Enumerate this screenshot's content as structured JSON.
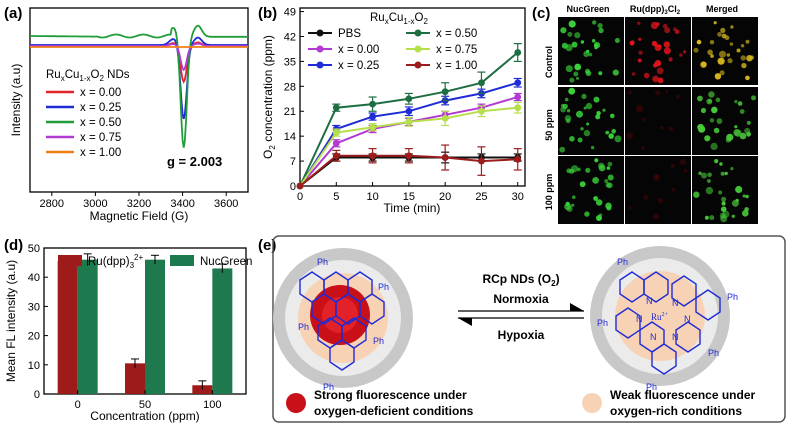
{
  "panels": {
    "a": {
      "label": "(a)"
    },
    "b": {
      "label": "(b)"
    },
    "c": {
      "label": "(c)"
    },
    "d": {
      "label": "(d)"
    },
    "e": {
      "label": "(e)"
    }
  },
  "colors": {
    "red": "#e3242b",
    "blue": "#1f2bd6",
    "green": "#219c3b",
    "purple": "#b23ad2",
    "orange": "#f07f1a",
    "black": "#111111",
    "dkgreen": "#1d6e43",
    "lime": "#b6e04a",
    "maroon": "#9b1d1d",
    "barred": "#9e1b1b",
    "bargreen": "#1e7a4e"
  },
  "chart_data": [
    {
      "id": "a",
      "type": "line",
      "title": "",
      "xlabel": "Magnetic Field (G)",
      "ylabel": "Intensity (a.u)",
      "xlim": [
        2700,
        3700
      ],
      "xticks": [
        2800,
        3000,
        3200,
        3400,
        3600
      ],
      "legend_title_main": "Ru",
      "legend_title_sub1": "x",
      "legend_title_mid": "Cu",
      "legend_title_sub2": "1-x",
      "legend_title_mid2": "O",
      "legend_title_sub3": "2",
      "legend_title_end": " NDs",
      "annotation": "g = 2.003",
      "series": [
        {
          "name": "x = 0.00",
          "color": "#e3242b",
          "depth": 0.3
        },
        {
          "name": "x = 0.25",
          "color": "#1f2bd6",
          "depth": 0.62
        },
        {
          "name": "x = 0.50",
          "color": "#219c3b",
          "depth": 0.93
        },
        {
          "name": "x = 0.75",
          "color": "#b23ad2",
          "depth": 0.2
        },
        {
          "name": "x = 1.00",
          "color": "#f07f1a",
          "depth": 0.0
        }
      ]
    },
    {
      "id": "b",
      "type": "line",
      "title_main": "Ru",
      "title_sub1": "x",
      "title_mid": "Cu",
      "title_sub2": "1-x",
      "title_mid2": "O",
      "title_sub3": "2",
      "xlabel": "Time (min)",
      "ylabel_main": "O",
      "ylabel_sub": "2",
      "ylabel_rest": " concentration (ppm)",
      "xlim": [
        0,
        31
      ],
      "ylim": [
        0,
        50
      ],
      "xticks": [
        0,
        5,
        10,
        15,
        20,
        25,
        30
      ],
      "yticks": [
        0,
        7,
        14,
        21,
        28,
        35,
        42,
        49
      ],
      "x": [
        0,
        5,
        10,
        15,
        20,
        25,
        30
      ],
      "series": [
        {
          "name": "PBS",
          "color": "#111111",
          "values": [
            0,
            8,
            8,
            8,
            8,
            8,
            8
          ],
          "err": [
            0,
            1,
            1,
            1,
            1.5,
            1,
            1
          ]
        },
        {
          "name": "x = 0.00",
          "color": "#b23ad2",
          "values": [
            0,
            12,
            16,
            18,
            20,
            22,
            25
          ],
          "err": [
            0,
            1,
            1,
            1,
            1,
            1,
            1
          ]
        },
        {
          "name": "x = 0.25",
          "color": "#1f2bd6",
          "values": [
            0,
            16,
            19.5,
            21,
            24,
            26,
            29
          ],
          "err": [
            0,
            1,
            1,
            1.2,
            1.2,
            1.2,
            1.2
          ]
        },
        {
          "name": "x = 0.50",
          "color": "#1d6e43",
          "values": [
            0,
            22,
            23,
            24.5,
            26.5,
            29,
            37.5
          ],
          "err": [
            0,
            1,
            2,
            1.5,
            2.5,
            3,
            2.5
          ]
        },
        {
          "name": "x = 0.75",
          "color": "#b6e04a",
          "values": [
            0,
            15,
            16.5,
            18,
            19,
            21,
            22
          ],
          "err": [
            0,
            1,
            1,
            1.2,
            2,
            1.5,
            1.5
          ]
        },
        {
          "name": "x = 1.00",
          "color": "#9b1d1d",
          "values": [
            0,
            8.5,
            8.5,
            8.5,
            8,
            7,
            7.5
          ],
          "err": [
            0,
            1.5,
            2,
            2,
            3.5,
            4,
            3
          ]
        }
      ],
      "legend_order": [
        0,
        3,
        1,
        4,
        2,
        5
      ]
    },
    {
      "id": "d",
      "type": "bar",
      "xlabel": "Concentration (ppm)",
      "ylabel": "Mean FL intensity (a.u)",
      "ylim": [
        0,
        50
      ],
      "yticks": [
        0,
        10,
        20,
        30,
        40,
        50
      ],
      "categories": [
        "0",
        "50",
        "100"
      ],
      "series": [
        {
          "name_main": "Ru(dpp)",
          "name_sub": "3",
          "name_sup": "2+",
          "color": "#9e1b1b",
          "values": [
            45.5,
            10.5,
            3
          ],
          "err": [
            1,
            1.5,
            1.5
          ]
        },
        {
          "name_main": "NucGreen",
          "name_sub": "",
          "name_sup": "",
          "color": "#1e7a4e",
          "values": [
            46,
            46,
            43
          ],
          "err": [
            2,
            1.5,
            1.5
          ]
        }
      ]
    }
  ],
  "micrograph": {
    "col_headers": [
      "NucGreen",
      "Ru(dpp)",
      "Cl",
      "Merged"
    ],
    "col_header_sub": "3",
    "col_header_sub2": "2",
    "rows": [
      "Control",
      "50 ppm",
      "100 ppm"
    ]
  },
  "scheme": {
    "arrow_top": "RCp NDs (O",
    "arrow_top_sub": "2",
    "arrow_top_end": ")",
    "arrow_mid": "Normoxia",
    "arrow_bottom": "Hypoxia",
    "ph": "Ph",
    "rcp_center": "Ru",
    "rcp_center_sup": "2+",
    "n": "N",
    "caption_left_1": "Strong fluorescence under",
    "caption_left_2": "oxygen-deficient conditions",
    "caption_right_1": "Weak fluorescence under",
    "caption_right_2": "oxygen-rich conditions"
  }
}
